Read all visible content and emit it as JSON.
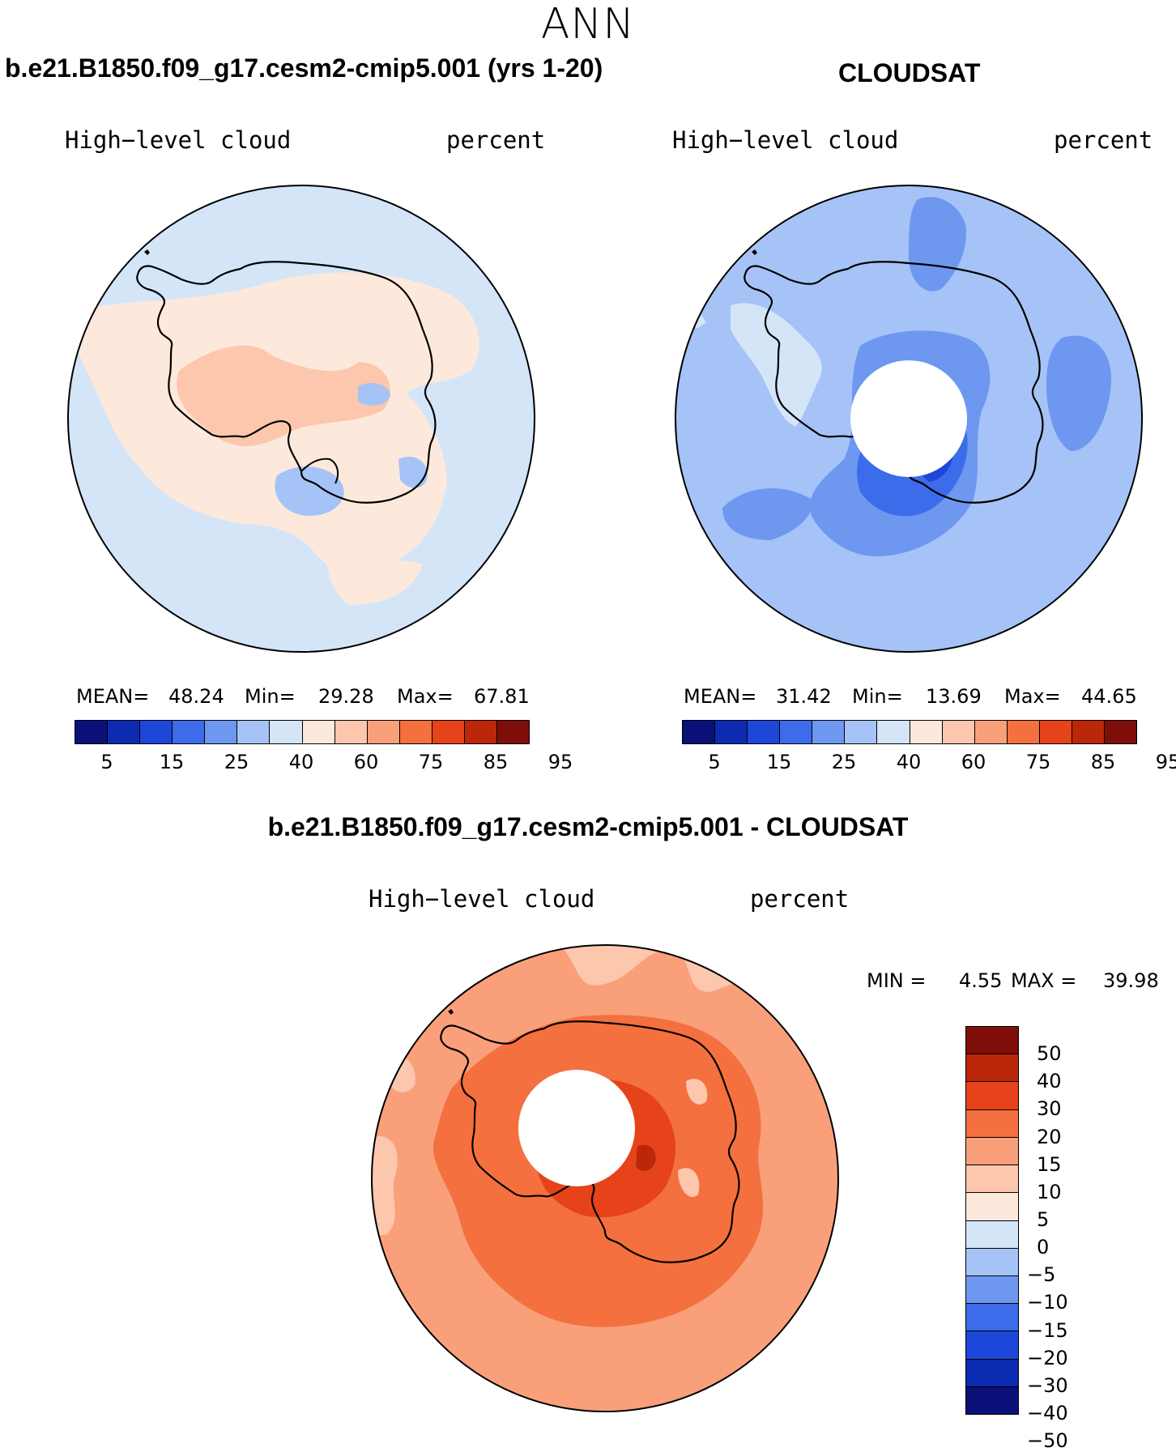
{
  "page": {
    "season": "ANN",
    "variable": "High−level cloud",
    "units": "percent"
  },
  "panels": {
    "model": {
      "title": "b.e21.B1850.f09_g17.cesm2-cmip5.001 (yrs 1-20)",
      "mean_label": "MEAN=",
      "mean": "48.24",
      "min_label": "Min=",
      "min": "29.28",
      "max_label": "Max=",
      "max": "67.81"
    },
    "obs": {
      "title": "CLOUDSAT",
      "mean_label": "MEAN=",
      "mean": "31.42",
      "min_label": "Min=",
      "min": "13.69",
      "max_label": "Max=",
      "max": "44.65"
    },
    "diff": {
      "title": "b.e21.B1850.f09_g17.cesm2-cmip5.001 - CLOUDSAT",
      "min_label": "MIN =",
      "min": "4.55",
      "max_label": "MAX =",
      "max": "39.98"
    }
  },
  "colorbars": {
    "abs_colors": [
      "#0a1178",
      "#0d2bb0",
      "#1d47d9",
      "#3d6cea",
      "#6e97f0",
      "#a6c3f7",
      "#d4e5f8",
      "#fde9dc",
      "#fcc7ad",
      "#f9a07b",
      "#f4703f",
      "#e6431a",
      "#bb2709",
      "#7f0e0a"
    ],
    "abs_labels": [
      "5",
      "15",
      "25",
      "40",
      "60",
      "75",
      "85",
      "95"
    ],
    "diff_colors": [
      "#7f0e0a",
      "#bb2709",
      "#e6431a",
      "#f4703f",
      "#f9a07b",
      "#fcc7ad",
      "#fde9dc",
      "#d4e5f8",
      "#a6c3f7",
      "#6e97f0",
      "#3d6cea",
      "#1d47d9",
      "#0d2bb0",
      "#0a1178"
    ],
    "diff_labels": [
      "50",
      "40",
      "30",
      "20",
      "15",
      "10",
      "5",
      "0",
      "−5",
      "−10",
      "−15",
      "−20",
      "−30",
      "−40",
      "−50"
    ]
  },
  "chart_data": [
    {
      "type": "heatmap",
      "projection": "south-polar-stereographic",
      "title": "b.e21.B1850.f09_g17.cesm2-cmip5.001 (yrs 1-20)",
      "variable": "High-level cloud",
      "units": "percent",
      "mean": 48.24,
      "min": 29.28,
      "max": 67.81,
      "levels": [
        5,
        10,
        15,
        20,
        25,
        30,
        40,
        50,
        60,
        70,
        75,
        80,
        85,
        90,
        95
      ]
    },
    {
      "type": "heatmap",
      "projection": "south-polar-stereographic",
      "title": "CLOUDSAT",
      "variable": "High-level cloud",
      "units": "percent",
      "mean": 31.42,
      "min": 13.69,
      "max": 44.65,
      "levels": [
        5,
        10,
        15,
        20,
        25,
        30,
        40,
        50,
        60,
        70,
        75,
        80,
        85,
        90,
        95
      ]
    },
    {
      "type": "heatmap",
      "projection": "south-polar-stereographic",
      "title": "b.e21.B1850.f09_g17.cesm2-cmip5.001 - CLOUDSAT",
      "variable": "High-level cloud",
      "units": "percent",
      "min": 4.55,
      "max": 39.98,
      "levels": [
        -50,
        -40,
        -30,
        -20,
        -15,
        -10,
        -5,
        0,
        5,
        10,
        15,
        20,
        30,
        40,
        50
      ]
    }
  ]
}
